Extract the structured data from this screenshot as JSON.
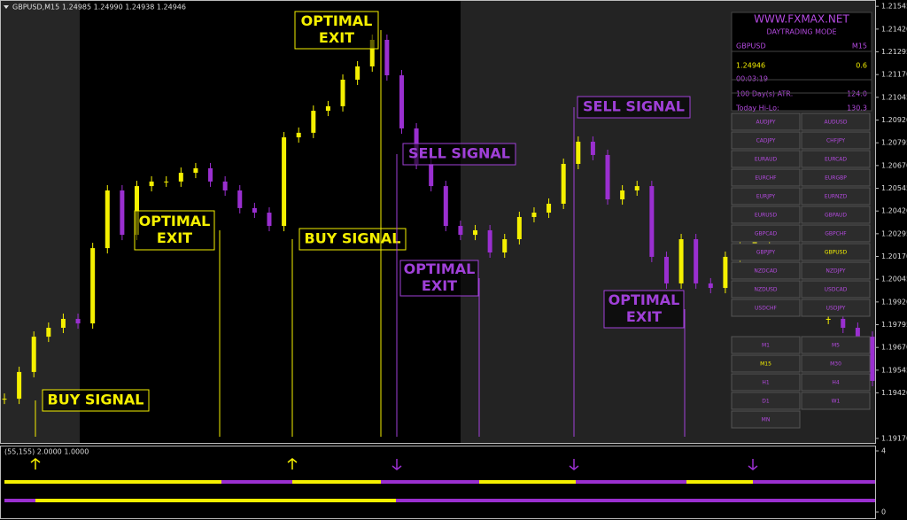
{
  "header": {
    "symbol": "GBPUSD,M15",
    "ohlc": "1.24985 1.24990 1.24938 1.24946"
  },
  "chart_data": {
    "type": "candlestick",
    "values": [
      1.19388,
      1.19535,
      1.19729,
      1.19778,
      1.19827,
      1.19802,
      1.20216,
      1.20533,
      1.20289,
      1.20557,
      1.20582,
      1.20582,
      1.2063,
      1.20655,
      1.20582,
      1.20533,
      1.20436,
      1.20411,
      1.20338,
      1.20825,
      1.2085,
      1.20971,
      1.20996,
      1.21142,
      1.21215,
      1.21361,
      1.21166,
      1.20874,
      1.20679,
      1.20557,
      1.20338,
      1.20289,
      1.20314,
      1.20192,
      1.20265,
      1.20387,
      1.20411,
      1.2046,
      1.20679,
      1.20801,
      1.20728,
      1.20484,
      1.20533,
      1.20557,
      1.20168,
      1.20022,
      1.20265,
      1.20022,
      1.19997,
      1.20168,
      1.20241,
      1.20265,
      1.20314,
      null,
      null,
      null,
      1.19827,
      1.19778,
      1.19729,
      1.19486
    ],
    "up_color": "#f5f000",
    "down_color": "#9a2fd0",
    "ylim": [
      1.19145,
      1.2158
    ],
    "yticks": [
      1.21545,
      {
        "value": 1.2142,
        "label": "1.21420"
      },
      1.21295,
      {
        "value": 1.2117,
        "label": "1.21170"
      },
      1.21045,
      {
        "value": 1.2092,
        "label": "1.20920"
      },
      1.20795,
      {
        "value": 1.2067,
        "label": "1.20670"
      },
      1.20545,
      {
        "value": 1.2042,
        "label": "1.20420"
      },
      1.20295,
      {
        "value": 1.2017,
        "label": "1.20170"
      },
      1.20045,
      {
        "value": 1.1992,
        "label": "1.19920"
      },
      1.19795,
      {
        "value": 1.1967,
        "label": "1.19670"
      },
      1.19545,
      {
        "value": 1.1942,
        "label": "1.19420"
      },
      {
        "value": 1.1917,
        "label": "1.19170"
      }
    ]
  },
  "annotations": [
    {
      "lines": [
        "BUY SIGNAL"
      ],
      "color": "#f5f000"
    },
    {
      "lines": [
        "OPTIMAL",
        "EXIT"
      ],
      "color": "#f5f000"
    },
    {
      "lines": [
        "BUY SIGNAL"
      ],
      "color": "#f5f000"
    },
    {
      "lines": [
        "OPTIMAL",
        "EXIT"
      ],
      "color": "#f5f000"
    },
    {
      "lines": [
        "SELL SIGNAL"
      ],
      "color": "#a040d8"
    },
    {
      "lines": [
        "OPTIMAL",
        "EXIT"
      ],
      "color": "#a040d8"
    },
    {
      "lines": [
        "SELL SIGNAL"
      ],
      "color": "#a040d8"
    },
    {
      "lines": [
        "OPTIMAL",
        "EXIT"
      ],
      "color": "#a040d8"
    }
  ],
  "info_panel": {
    "site": "WWW.FXMAX.NET",
    "mode": "DAYTRADING MODE",
    "symbol": "GBPUSD",
    "timeframe": "M15",
    "price": "1.24946",
    "spread": "0.6",
    "timer": "00:03:19",
    "atr_label": "100 Day(s) ATR:",
    "atr_value": "124.0",
    "hilo_label": "Today Hi-Lo:",
    "hilo_value": "130.3"
  },
  "symbols": [
    "AUDJPY",
    "AUDUSD",
    "CADJPY",
    "CHFJPY",
    "EURAUD",
    "EURCAD",
    "EURCHF",
    "EURGBP",
    "EURJPY",
    "EURNZD",
    "EURUSD",
    "GBPAUD",
    "GBPCAD",
    "GBPCHF",
    "GBPJPY",
    "GBPUSD",
    "NZDCAD",
    "NZDJPY",
    "NZDUSD",
    "USDCAD",
    "USDCHF",
    "USDJPY"
  ],
  "timeframes": [
    "M1",
    "M5",
    "M15",
    "M30",
    "H1",
    "H4",
    "D1",
    "W1",
    "MN"
  ],
  "indicator": {
    "params": "(55,155) 2.0000 1.0000",
    "ylim": [
      0,
      4
    ],
    "yticks": [
      4,
      0
    ]
  }
}
